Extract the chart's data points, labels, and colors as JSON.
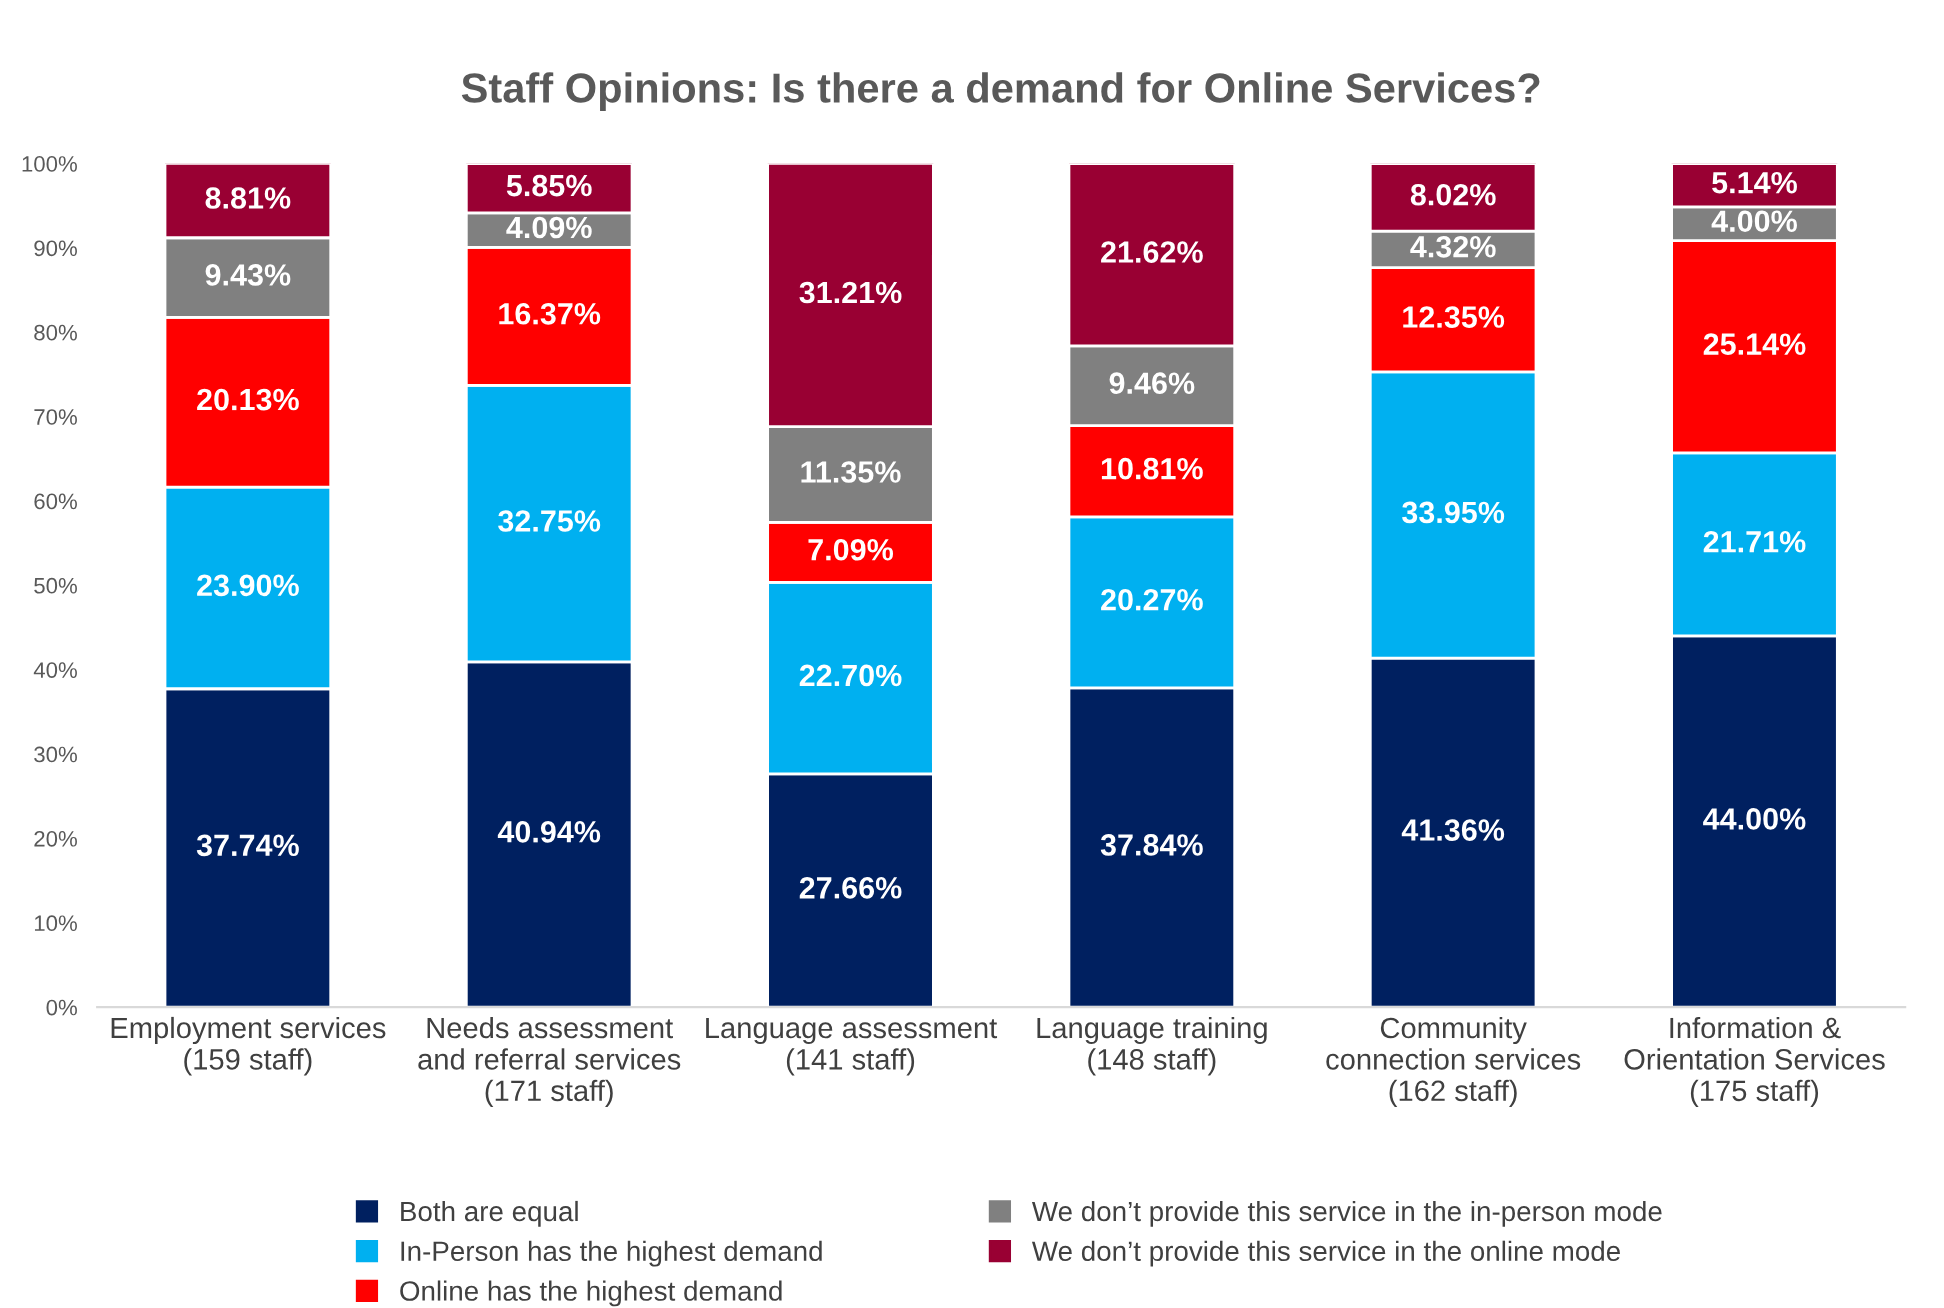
{
  "chart_data": {
    "type": "bar",
    "title": "Staff Opinions: Is there a demand for Online Services?",
    "categories": [
      "Employment services\n(159 staff)",
      "Needs assessment\nand referral services\n(171 staff)",
      "Language assessment\n(141 staff)",
      "Language training\n(148 staff)",
      "Community\nconnection services\n(162 staff)",
      "Information &\nOrientation Services\n(175 staff)"
    ],
    "stacked": true,
    "series": [
      {
        "name": "Both are equal",
        "color": "#002060",
        "values": [
          37.74,
          40.94,
          27.66,
          37.84,
          41.36,
          44.0
        ],
        "value_labels": [
          "37.74%",
          "40.94%",
          "27.66%",
          "37.84%",
          "41.36%",
          "44.00%"
        ]
      },
      {
        "name": "In-Person has the highest demand",
        "color": "#00b0f0",
        "values": [
          23.9,
          32.75,
          22.7,
          20.27,
          33.95,
          21.71
        ],
        "value_labels": [
          "23.90%",
          "32.75%",
          "22.70%",
          "20.27%",
          "33.95%",
          "21.71%"
        ]
      },
      {
        "name": "Online has the highest demand",
        "color": "#ff0000",
        "values": [
          20.13,
          16.37,
          7.09,
          10.81,
          12.35,
          25.14
        ],
        "value_labels": [
          "20.13%",
          "16.37%",
          "7.09%",
          "10.81%",
          "12.35%",
          "25.14%"
        ]
      },
      {
        "name": "We don’t provide this service in the in-person mode",
        "color": "#808080",
        "values": [
          9.43,
          4.09,
          11.35,
          9.46,
          4.32,
          4.0
        ],
        "value_labels": [
          "9.43%",
          "4.09%",
          "11.35%",
          "9.46%",
          "4.32%",
          "4.00%"
        ]
      },
      {
        "name": "We don’t provide this service in the online mode",
        "color": "#990033",
        "values": [
          8.81,
          5.85,
          31.21,
          21.62,
          8.02,
          5.14
        ],
        "value_labels": [
          "8.81%",
          "5.85%",
          "31.21%",
          "21.62%",
          "8.02%",
          "5.14%"
        ]
      }
    ],
    "ylim": [
      0,
      100
    ],
    "yticks": [
      {
        "value": 0,
        "label": "0%"
      },
      {
        "value": 10,
        "label": "10%"
      },
      {
        "value": 20,
        "label": "20%"
      },
      {
        "value": 30,
        "label": "30%"
      },
      {
        "value": 40,
        "label": "40%"
      },
      {
        "value": 50,
        "label": "50%"
      },
      {
        "value": 60,
        "label": "60%"
      },
      {
        "value": 70,
        "label": "70%"
      },
      {
        "value": 80,
        "label": "80%"
      },
      {
        "value": 90,
        "label": "90%"
      },
      {
        "value": 100,
        "label": "100%"
      }
    ],
    "grid": false,
    "legend": "bottom"
  }
}
